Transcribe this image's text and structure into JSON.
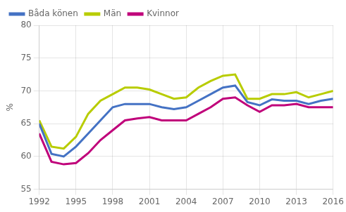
{
  "chart_data": {
    "type": "line",
    "ylabel": "%",
    "x": [
      1992,
      1993,
      1994,
      1995,
      1996,
      1997,
      1998,
      1999,
      2000,
      2001,
      2002,
      2003,
      2004,
      2005,
      2006,
      2007,
      2008,
      2009,
      2010,
      2011,
      2012,
      2013,
      2014,
      2015,
      2016
    ],
    "series": [
      {
        "name": "Båda könen",
        "color": "#4472c4",
        "values": [
          65.0,
          60.4,
          60.0,
          61.5,
          63.5,
          65.5,
          67.5,
          68.0,
          68.0,
          68.0,
          67.5,
          67.2,
          67.5,
          68.5,
          69.5,
          70.5,
          70.8,
          68.3,
          67.8,
          68.7,
          68.5,
          68.5,
          68.0,
          68.5,
          68.8
        ]
      },
      {
        "name": "Män",
        "color": "#b8cc00",
        "values": [
          65.5,
          61.5,
          61.2,
          63.0,
          66.5,
          68.5,
          69.5,
          70.5,
          70.5,
          70.2,
          69.5,
          68.8,
          69.0,
          70.5,
          71.5,
          72.3,
          72.5,
          68.8,
          68.8,
          69.5,
          69.5,
          69.8,
          69.0,
          69.5,
          70.0
        ]
      },
      {
        "name": "Kvinnor",
        "color": "#c0007a",
        "values": [
          63.5,
          59.2,
          58.8,
          59.0,
          60.5,
          62.5,
          64.0,
          65.5,
          65.8,
          66.0,
          65.5,
          65.5,
          65.5,
          66.5,
          67.5,
          68.8,
          69.0,
          67.8,
          66.8,
          67.8,
          67.8,
          68.0,
          67.5,
          67.5,
          67.5
        ]
      }
    ],
    "xlim": [
      1992,
      2016
    ],
    "xticks": [
      1992,
      1995,
      1998,
      2001,
      2004,
      2007,
      2010,
      2013,
      2016
    ],
    "ylim": [
      55,
      80
    ],
    "yticks": [
      55,
      60,
      65,
      70,
      75,
      80
    ],
    "grid": true,
    "legend": "upper left"
  }
}
